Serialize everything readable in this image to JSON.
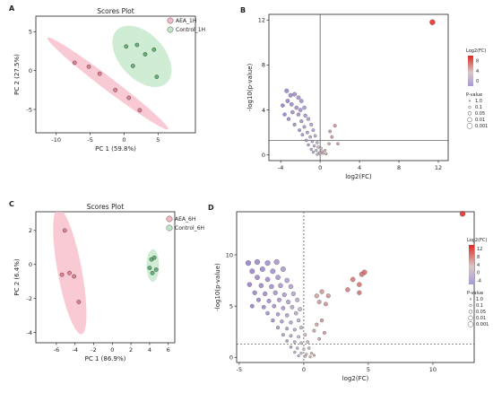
{
  "figure": {
    "letters": [
      "A",
      "B",
      "C",
      "D"
    ]
  },
  "chart_data": [
    {
      "panel": "A",
      "type": "scatter",
      "title": "Scores Plot",
      "xlabel": "PC 1 (59.8%)",
      "ylabel": "PC 2 (27.5%)",
      "xlim": [
        -13,
        10.5
      ],
      "ylim": [
        -8,
        7
      ],
      "xticks": [
        -10,
        -5,
        0,
        5
      ],
      "yticks": [
        -5,
        0,
        5
      ],
      "grid": false,
      "legend_position": "top-right",
      "series": [
        {
          "name": "AEA_1H",
          "color": "#e8677e",
          "ellipse_color": "#f7b8c5",
          "points": [
            [
              -7.3,
              1.0
            ],
            [
              -5.2,
              0.5
            ],
            [
              -3.6,
              -0.4
            ],
            [
              -1.3,
              -2.5
            ],
            [
              0.7,
              -3.5
            ],
            [
              2.3,
              -5.1
            ]
          ]
        },
        {
          "name": "Control_1H",
          "color": "#3daa56",
          "ellipse_color": "#bfe6c5",
          "points": [
            [
              0.3,
              3.1
            ],
            [
              1.9,
              3.3
            ],
            [
              3.1,
              2.1
            ],
            [
              4.4,
              2.7
            ],
            [
              1.3,
              0.6
            ],
            [
              4.8,
              -0.8
            ]
          ]
        }
      ]
    },
    {
      "panel": "B",
      "type": "scatter",
      "title": "",
      "xlabel": "log2(FC)",
      "ylabel": "-log10(p-value)",
      "xlim": [
        -5.2,
        13
      ],
      "ylim": [
        -0.5,
        12.5
      ],
      "xticks": [
        -4,
        0,
        4,
        8,
        12
      ],
      "yticks": [
        0,
        4,
        8,
        12
      ],
      "threshold_x": 0,
      "threshold_y": 1.3,
      "line_style": "solid",
      "colorbar_title": "Log2(FC)",
      "colorbar_ticks": [
        "8",
        "4",
        "0"
      ],
      "size_legend_title": "P-value",
      "size_legend": [
        "1.0",
        "0.1",
        "0.05",
        "0.01",
        "0.001"
      ],
      "points": [
        [
          -3.4,
          5.7
        ],
        [
          -3.0,
          5.3
        ],
        [
          -3.3,
          4.8
        ],
        [
          -2.6,
          5.4
        ],
        [
          -2.2,
          5.1
        ],
        [
          -3.8,
          4.4
        ],
        [
          -2.9,
          4.5
        ],
        [
          -2.4,
          4.2
        ],
        [
          -1.9,
          4.8
        ],
        [
          -1.6,
          4.2
        ],
        [
          -2.8,
          3.8
        ],
        [
          -2.2,
          3.6
        ],
        [
          -1.5,
          3.5
        ],
        [
          -3.2,
          3.2
        ],
        [
          -1.9,
          3.0
        ],
        [
          -1.2,
          3.2
        ],
        [
          -2.6,
          2.7
        ],
        [
          -1.6,
          2.5
        ],
        [
          -0.9,
          2.7
        ],
        [
          -2.1,
          2.2
        ],
        [
          -1.3,
          2.0
        ],
        [
          -0.7,
          2.2
        ],
        [
          -1.8,
          1.8
        ],
        [
          -1.0,
          1.6
        ],
        [
          -0.5,
          1.7
        ],
        [
          -1.4,
          1.3
        ],
        [
          -0.8,
          1.2
        ],
        [
          -0.3,
          1.1
        ],
        [
          -1.2,
          0.9
        ],
        [
          -0.6,
          0.8
        ],
        [
          -0.2,
          0.7
        ],
        [
          0.1,
          0.6
        ],
        [
          -0.9,
          0.5
        ],
        [
          -0.4,
          0.4
        ],
        [
          0.2,
          0.3
        ],
        [
          0.5,
          0.4
        ],
        [
          -0.7,
          0.25
        ],
        [
          -0.1,
          0.2
        ],
        [
          0.3,
          0.15
        ],
        [
          0.6,
          0.1
        ],
        [
          -0.3,
          0.05
        ],
        [
          0.0,
          0.1
        ],
        [
          0.9,
          1.0
        ],
        [
          1.2,
          1.6
        ],
        [
          1.5,
          2.6
        ],
        [
          1.8,
          1.0
        ],
        [
          1.0,
          2.1
        ],
        [
          -3.6,
          3.6
        ],
        [
          -2.0,
          4.0
        ],
        [
          11.4,
          11.8
        ]
      ]
    },
    {
      "panel": "C",
      "type": "scatter",
      "title": "Scores Plot",
      "xlabel": "PC 1 (86.9%)",
      "ylabel": "PC 2 (6.4%)",
      "xlim": [
        -8.2,
        6.7
      ],
      "ylim": [
        -4.6,
        3.1
      ],
      "xticks": [
        -6,
        -4,
        -2,
        0,
        2,
        4,
        6
      ],
      "yticks": [
        -4,
        -2,
        0,
        2
      ],
      "grid": false,
      "legend_position": "top-right",
      "series": [
        {
          "name": "AEA_6H",
          "color": "#e8677e",
          "ellipse_color": "#f7b8c5",
          "points": [
            [
              -5.1,
              2.0
            ],
            [
              -5.4,
              -0.6
            ],
            [
              -4.6,
              -0.5
            ],
            [
              -4.1,
              -0.7
            ],
            [
              -3.6,
              -2.2
            ]
          ]
        },
        {
          "name": "Control_6H",
          "color": "#3daa56",
          "ellipse_color": "#bfe6c5",
          "points": [
            [
              4.2,
              0.3
            ],
            [
              4.5,
              0.4
            ],
            [
              4.0,
              -0.2
            ],
            [
              4.7,
              -0.3
            ],
            [
              4.3,
              -0.5
            ]
          ]
        }
      ]
    },
    {
      "panel": "D",
      "type": "scatter",
      "title": "",
      "xlabel": "log2(FC)",
      "ylabel": "-log10(p-value)",
      "xlim": [
        -5.2,
        13.2
      ],
      "ylim": [
        -0.5,
        14.2
      ],
      "xticks": [
        -5,
        0,
        5,
        10
      ],
      "yticks": [
        0,
        5,
        10
      ],
      "threshold_x": 0,
      "threshold_y": 1.3,
      "line_style": "dashed",
      "colorbar_title": "Log2(FC)",
      "colorbar_ticks": [
        "12",
        "8",
        "4",
        "0",
        "-4"
      ],
      "size_legend_title": "P-value",
      "size_legend": [
        "1.0",
        "0.1",
        "0.05",
        "0.01",
        "0.001"
      ],
      "points": [
        [
          -4.3,
          9.2
        ],
        [
          -3.6,
          9.3
        ],
        [
          -2.8,
          9.2
        ],
        [
          -2.1,
          9.3
        ],
        [
          -4.0,
          8.4
        ],
        [
          -3.2,
          8.6
        ],
        [
          -2.4,
          8.4
        ],
        [
          -1.6,
          8.6
        ],
        [
          -3.6,
          7.8
        ],
        [
          -2.8,
          7.6
        ],
        [
          -2.0,
          7.8
        ],
        [
          -1.3,
          7.5
        ],
        [
          -4.2,
          7.1
        ],
        [
          -3.3,
          7.0
        ],
        [
          -2.5,
          6.9
        ],
        [
          -1.8,
          7.0
        ],
        [
          -1.0,
          6.9
        ],
        [
          -3.8,
          6.3
        ],
        [
          -3.0,
          6.2
        ],
        [
          -2.2,
          6.3
        ],
        [
          -1.5,
          6.1
        ],
        [
          -0.8,
          6.2
        ],
        [
          -3.5,
          5.6
        ],
        [
          -2.7,
          5.5
        ],
        [
          -1.9,
          5.6
        ],
        [
          -1.2,
          5.4
        ],
        [
          -0.5,
          5.6
        ],
        [
          -4.0,
          5.0
        ],
        [
          -3.1,
          4.9
        ],
        [
          -2.3,
          5.0
        ],
        [
          -1.6,
          4.8
        ],
        [
          -0.9,
          4.9
        ],
        [
          -0.3,
          4.7
        ],
        [
          -2.8,
          4.3
        ],
        [
          -2.0,
          4.2
        ],
        [
          -1.3,
          4.1
        ],
        [
          -0.6,
          4.3
        ],
        [
          -2.4,
          3.6
        ],
        [
          -1.7,
          3.5
        ],
        [
          -1.0,
          3.4
        ],
        [
          -0.4,
          3.6
        ],
        [
          -2.0,
          2.9
        ],
        [
          -1.3,
          2.8
        ],
        [
          -0.7,
          2.7
        ],
        [
          -0.2,
          2.9
        ],
        [
          -1.6,
          2.2
        ],
        [
          -1.0,
          2.1
        ],
        [
          -0.4,
          2.0
        ],
        [
          0.1,
          2.2
        ],
        [
          -1.3,
          1.6
        ],
        [
          -0.7,
          1.5
        ],
        [
          -0.2,
          1.4
        ],
        [
          0.3,
          1.5
        ],
        [
          -1.0,
          1.0
        ],
        [
          -0.5,
          0.9
        ],
        [
          0.0,
          0.8
        ],
        [
          0.4,
          0.9
        ],
        [
          -0.7,
          0.5
        ],
        [
          -0.2,
          0.4
        ],
        [
          0.2,
          0.3
        ],
        [
          0.6,
          0.4
        ],
        [
          -0.4,
          0.15
        ],
        [
          0.1,
          0.1
        ],
        [
          0.5,
          0.05
        ],
        [
          0.8,
          0.2
        ],
        [
          1.0,
          3.2
        ],
        [
          1.4,
          3.6
        ],
        [
          0.8,
          2.6
        ],
        [
          1.6,
          2.4
        ],
        [
          1.2,
          1.8
        ],
        [
          1.0,
          6.0
        ],
        [
          1.4,
          6.4
        ],
        [
          1.9,
          6.0
        ],
        [
          1.2,
          5.4
        ],
        [
          1.7,
          5.2
        ],
        [
          3.4,
          6.6
        ],
        [
          3.8,
          7.6
        ],
        [
          4.3,
          7.1
        ],
        [
          4.7,
          8.3
        ],
        [
          4.5,
          8.1
        ],
        [
          4.3,
          6.3
        ],
        [
          12.3,
          14.0
        ]
      ]
    }
  ]
}
